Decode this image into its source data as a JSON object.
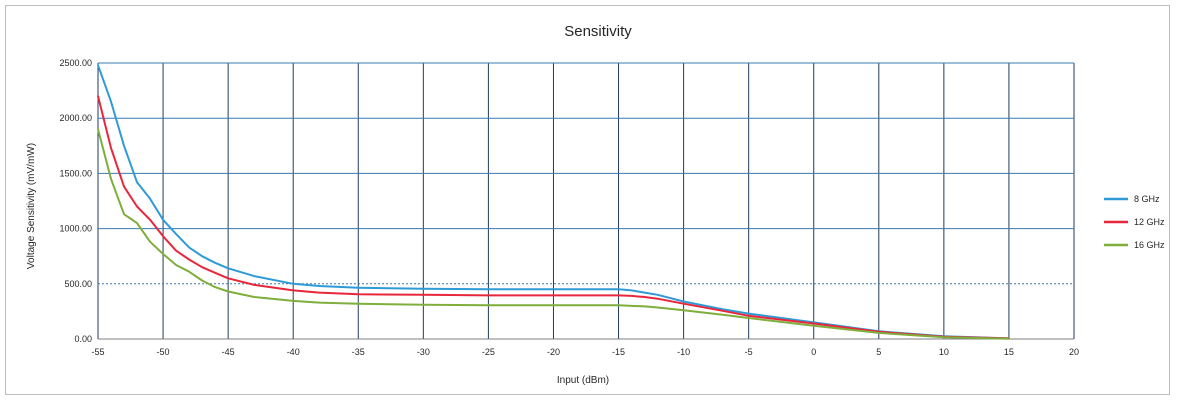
{
  "chart_data": {
    "type": "line",
    "title": "Sensitivity",
    "xlabel": "Input (dBm)",
    "ylabel": "Voltage Sensitivity (mV/mW)",
    "xlim": [
      -55,
      20
    ],
    "ylim": [
      0,
      2500
    ],
    "xticks": [
      -55,
      -50,
      -45,
      -40,
      -35,
      -30,
      -25,
      -20,
      -15,
      -10,
      -5,
      0,
      5,
      10,
      15,
      20
    ],
    "yticks": [
      "0.00",
      "500.00",
      "1000.00",
      "1500.00",
      "2000.00",
      "2500.00"
    ],
    "grid": true,
    "legend": "right",
    "series": [
      {
        "name": "8 GHz",
        "color": "#2e9bd6",
        "x": [
          -55,
          -54,
          -53,
          -52,
          -51,
          -50,
          -49,
          -48,
          -47,
          -46,
          -45,
          -43,
          -40,
          -38,
          -35,
          -30,
          -25,
          -20,
          -15,
          -14,
          -13,
          -12,
          -10,
          -7,
          -5,
          0,
          5,
          10,
          15
        ],
        "y": [
          2480,
          2150,
          1750,
          1420,
          1270,
          1080,
          950,
          830,
          750,
          690,
          640,
          570,
          500,
          480,
          465,
          455,
          450,
          450,
          450,
          440,
          420,
          400,
          340,
          270,
          230,
          150,
          70,
          25,
          5
        ]
      },
      {
        "name": "12 GHz",
        "color": "#e8273c",
        "x": [
          -55,
          -54,
          -53,
          -52,
          -51,
          -50,
          -49,
          -48,
          -47,
          -46,
          -45,
          -43,
          -40,
          -38,
          -35,
          -30,
          -25,
          -20,
          -15,
          -14,
          -13,
          -12,
          -10,
          -7,
          -5,
          0,
          5,
          10,
          15
        ],
        "y": [
          2200,
          1730,
          1380,
          1200,
          1080,
          930,
          800,
          720,
          650,
          600,
          550,
          490,
          440,
          420,
          405,
          400,
          395,
          395,
          395,
          390,
          380,
          365,
          320,
          255,
          210,
          140,
          65,
          20,
          5
        ]
      },
      {
        "name": "16 GHz",
        "color": "#7fae3c",
        "x": [
          -55,
          -54,
          -53,
          -52,
          -51,
          -50,
          -49,
          -48,
          -47,
          -46,
          -45,
          -43,
          -40,
          -38,
          -35,
          -30,
          -25,
          -20,
          -15,
          -14,
          -13,
          -12,
          -10,
          -7,
          -5,
          0,
          5,
          10,
          15
        ],
        "y": [
          1900,
          1450,
          1130,
          1050,
          880,
          770,
          670,
          610,
          530,
          470,
          430,
          380,
          345,
          330,
          320,
          310,
          305,
          305,
          305,
          300,
          295,
          285,
          260,
          220,
          190,
          120,
          55,
          15,
          3
        ]
      }
    ]
  }
}
